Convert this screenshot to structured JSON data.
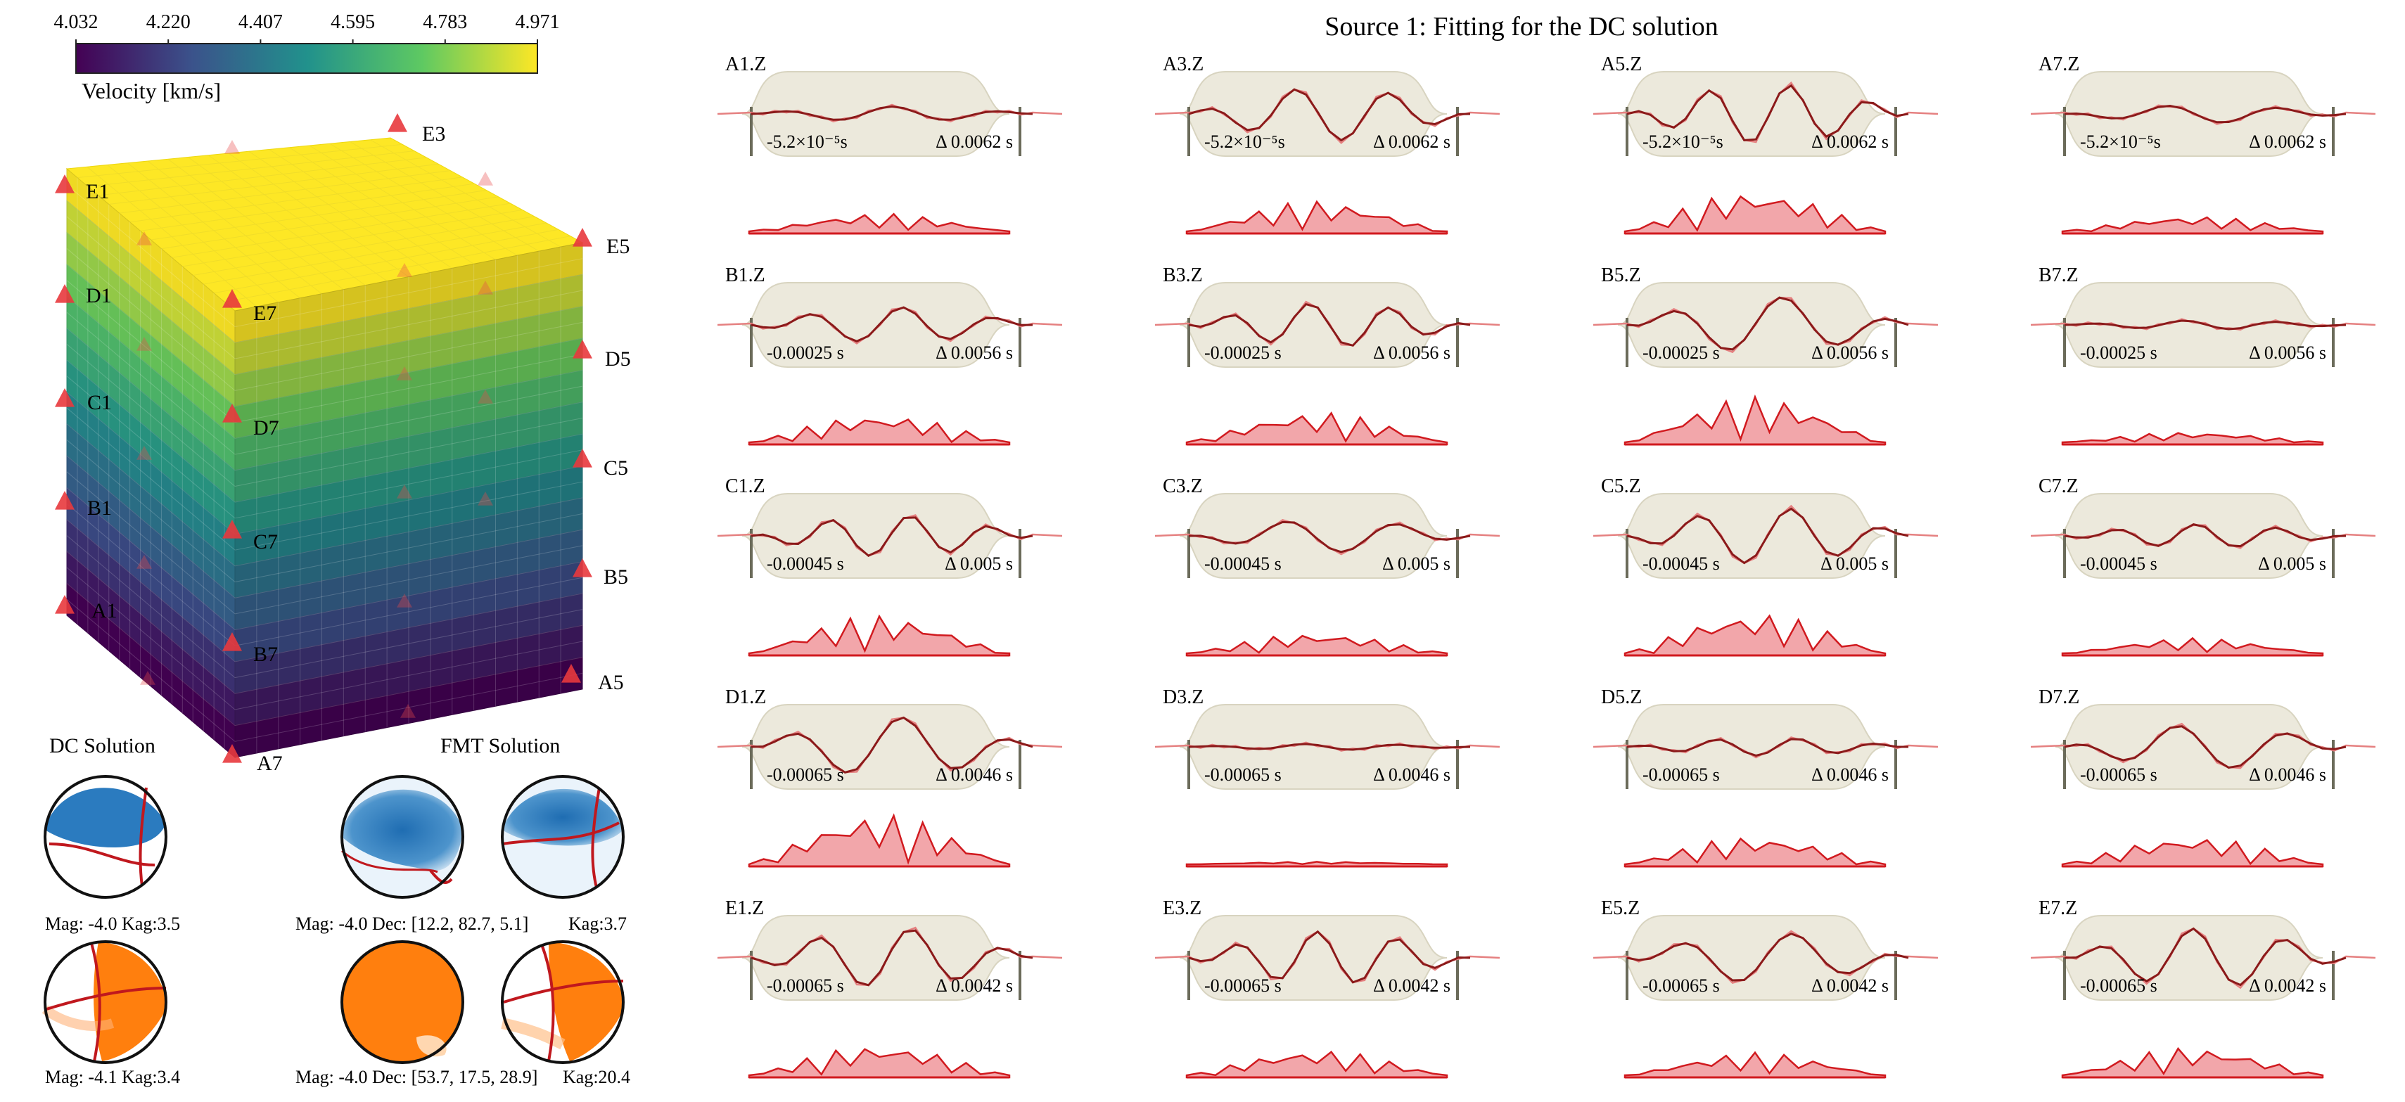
{
  "colorbar": {
    "ticks": [
      "4.032",
      "4.220",
      "4.407",
      "4.595",
      "4.783",
      "4.971"
    ],
    "label": "Velocity [km/s]",
    "range": [
      4.032,
      4.971
    ],
    "colors": [
      "#440154",
      "#3b528b",
      "#21918c",
      "#5ec962",
      "#fde725"
    ]
  },
  "stations": [
    {
      "label": "E3"
    },
    {
      "label": "E1"
    },
    {
      "label": "E5"
    },
    {
      "label": "D1"
    },
    {
      "label": "E7"
    },
    {
      "label": "D5"
    },
    {
      "label": "C1"
    },
    {
      "label": "D7"
    },
    {
      "label": "C5"
    },
    {
      "label": "B1"
    },
    {
      "label": "C7"
    },
    {
      "label": "B5"
    },
    {
      "label": "A1"
    },
    {
      "label": "B7"
    },
    {
      "label": "A5"
    },
    {
      "label": "A7"
    }
  ],
  "beachballs": {
    "dc_title": "DC Solution",
    "fmt_title": "FMT Solution",
    "labels": {
      "dc_top": "Mag: -4.0   Kag:3.5",
      "fmt_top_left": "Mag: -4.0   Dec: [12.2, 82.7, 5.1]",
      "fmt_top_right": "Kag:3.7",
      "dc_bottom": "Mag: -4.1   Kag:3.4",
      "fmt_bottom_left": "Mag: -4.0   Dec: [53.7, 17.5, 28.9]",
      "fmt_bottom_right": "Kag:20.4"
    },
    "colors": {
      "p_wave": "#2b7bbf",
      "s_wave": "#ff7f0e",
      "nodal": "#c0181e"
    }
  },
  "fitting": {
    "title": "Source 1: Fitting for the DC solution",
    "colors": {
      "envelope": "#ece9dc",
      "observed": "#e58080",
      "synthetic": "#8b1a1a",
      "residual_fill": "#f2a6aa",
      "residual_line": "#d11a1f",
      "bar": "#6b6b5a"
    },
    "rows": [
      {
        "shift": "-5.2×10⁻⁵s",
        "delta": "Δ 0.0062 s",
        "stations": [
          "A1.Z",
          "A3.Z",
          "A5.Z",
          "A7.Z"
        ],
        "amps": [
          0.25,
          0.9,
          1.0,
          0.3
        ],
        "res": [
          0.35,
          0.6,
          0.8,
          0.3
        ]
      },
      {
        "shift": "-0.00025 s",
        "delta": "Δ 0.0056 s",
        "stations": [
          "B1.Z",
          "B3.Z",
          "B5.Z",
          "B7.Z"
        ],
        "amps": [
          0.6,
          0.75,
          0.95,
          0.15
        ],
        "res": [
          0.55,
          0.6,
          0.9,
          0.2
        ]
      },
      {
        "shift": "-0.00045 s",
        "delta": "Δ 0.005 s",
        "stations": [
          "C1.Z",
          "C3.Z",
          "C5.Z",
          "C7.Z"
        ],
        "amps": [
          0.7,
          0.55,
          0.95,
          0.4
        ],
        "res": [
          0.75,
          0.4,
          0.8,
          0.3
        ]
      },
      {
        "shift": "-0.00065 s",
        "delta": "Δ 0.0046 s",
        "stations": [
          "D1.Z",
          "D3.Z",
          "D5.Z",
          "D7.Z"
        ],
        "amps": [
          1.0,
          0.1,
          0.3,
          0.75
        ],
        "res": [
          1.0,
          0.05,
          0.55,
          0.55
        ]
      },
      {
        "shift": "-0.00065 s",
        "delta": "Δ 0.0042 s",
        "stations": [
          "E1.Z",
          "E3.Z",
          "E5.Z",
          "E7.Z"
        ],
        "amps": [
          1.0,
          0.9,
          0.85,
          1.0
        ],
        "res": [
          0.6,
          0.5,
          0.45,
          0.55
        ]
      }
    ]
  }
}
